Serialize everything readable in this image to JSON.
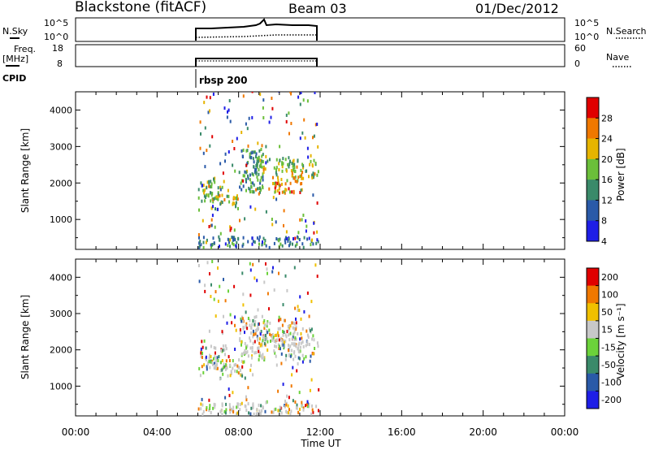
{
  "header": {
    "title": "Blackstone (fitACF)",
    "beam": "Beam 03",
    "date": "01/Dec/2012"
  },
  "top_panels": {
    "nsky": {
      "label": "N.Sky",
      "right_label": "N.Search",
      "ticks_left": [
        "10^5",
        "10^0"
      ],
      "ticks_right": [
        "10^5",
        "10^0"
      ]
    },
    "freq": {
      "label1": "Freq.",
      "label2": "[MHz]",
      "ticks_left": [
        "18",
        "8"
      ],
      "ticks_right": [
        "60",
        "0"
      ],
      "right_label": "Nave"
    },
    "cpid": {
      "label": "CPID",
      "program": "rbsp 200"
    }
  },
  "time_axis": {
    "label": "Time UT",
    "ticks": [
      "00:00",
      "04:00",
      "08:00",
      "12:00",
      "16:00",
      "20:00",
      "00:00"
    ],
    "range_hours": [
      0,
      24
    ],
    "data_span_hours": [
      6.0,
      12.0
    ]
  },
  "chart_data": [
    {
      "type": "heatmap",
      "name": "power",
      "ylabel": "Slant Range [km]",
      "ylim": [
        180,
        4500
      ],
      "yticks": [
        1000,
        2000,
        3000,
        4000
      ],
      "colorbar": {
        "label": "Power [dB]",
        "ticks": [
          "28",
          "24",
          "20",
          "16",
          "12",
          "8",
          "4"
        ],
        "range": [
          0,
          30
        ],
        "colors": [
          "#1e1ee6",
          "#2a5aa8",
          "#3a8a6a",
          "#6bbf3a",
          "#e6b400",
          "#f07800",
          "#e00000"
        ]
      },
      "regions": [
        {
          "t": [
            6.0,
            7.2
          ],
          "r": [
            1400,
            2050
          ],
          "level": 0.45
        },
        {
          "t": [
            6.4,
            8.0
          ],
          "r": [
            1250,
            1650
          ],
          "level": 0.55
        },
        {
          "t": [
            8.0,
            9.2
          ],
          "r": [
            1700,
            2900
          ],
          "level": 0.35
        },
        {
          "t": [
            8.8,
            10.8
          ],
          "r": [
            2200,
            2700
          ],
          "level": 0.5
        },
        {
          "t": [
            9.6,
            11.2
          ],
          "r": [
            1700,
            2200
          ],
          "level": 0.75
        },
        {
          "t": [
            10.4,
            11.9
          ],
          "r": [
            2100,
            2600
          ],
          "level": 0.55
        },
        {
          "t": [
            6.0,
            11.9
          ],
          "r": [
            200,
            500
          ],
          "level": 0.25
        }
      ]
    },
    {
      "type": "heatmap",
      "name": "velocity",
      "ylabel": "Slant Range [km]",
      "ylim": [
        180,
        4500
      ],
      "yticks": [
        1000,
        2000,
        3000,
        4000
      ],
      "colorbar": {
        "label": "Velocity [m s⁻¹]",
        "ticks": [
          "200",
          "100",
          "50",
          "15",
          "-15",
          "-50",
          "-100",
          "-200"
        ],
        "range": [
          -250,
          250
        ],
        "colors": [
          "#1e1ee6",
          "#2a5aa8",
          "#3a8a6a",
          "#6bd23a",
          "#c8c8c8",
          "#f0c000",
          "#f07800",
          "#e00000"
        ]
      },
      "regions": [
        {
          "t": [
            6.0,
            7.4
          ],
          "r": [
            1400,
            2100
          ],
          "level": 0.5
        },
        {
          "t": [
            6.4,
            8.2
          ],
          "r": [
            1250,
            1700
          ],
          "level": 0.5
        },
        {
          "t": [
            8.0,
            9.3
          ],
          "r": [
            1700,
            2900
          ],
          "level": 0.55
        },
        {
          "t": [
            8.8,
            10.8
          ],
          "r": [
            2200,
            2800
          ],
          "level": 0.5
        },
        {
          "t": [
            9.6,
            11.2
          ],
          "r": [
            1700,
            2300
          ],
          "level": 0.5
        },
        {
          "t": [
            10.4,
            11.9
          ],
          "r": [
            2000,
            2600
          ],
          "level": 0.5
        },
        {
          "t": [
            6.0,
            11.9
          ],
          "r": [
            200,
            500
          ],
          "level": 0.35
        }
      ]
    }
  ]
}
